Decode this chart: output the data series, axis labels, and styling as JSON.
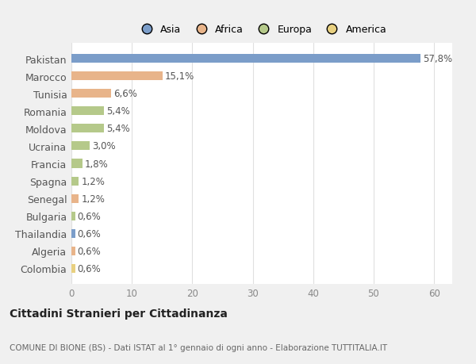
{
  "categories": [
    "Pakistan",
    "Marocco",
    "Tunisia",
    "Romania",
    "Moldova",
    "Ucraina",
    "Francia",
    "Spagna",
    "Senegal",
    "Bulgaria",
    "Thailandia",
    "Algeria",
    "Colombia"
  ],
  "values": [
    57.8,
    15.1,
    6.6,
    5.4,
    5.4,
    3.0,
    1.8,
    1.2,
    1.2,
    0.6,
    0.6,
    0.6,
    0.6
  ],
  "labels": [
    "57,8%",
    "15,1%",
    "6,6%",
    "5,4%",
    "5,4%",
    "3,0%",
    "1,8%",
    "1,2%",
    "1,2%",
    "0,6%",
    "0,6%",
    "0,6%",
    "0,6%"
  ],
  "colors": [
    "#7b9dc9",
    "#e8b48a",
    "#e8b48a",
    "#b5c98a",
    "#b5c98a",
    "#b5c98a",
    "#b5c98a",
    "#b5c98a",
    "#e8b48a",
    "#b5c98a",
    "#7b9dc9",
    "#e8b48a",
    "#e8d080"
  ],
  "legend_labels": [
    "Asia",
    "Africa",
    "Europa",
    "America"
  ],
  "legend_colors": [
    "#7b9dc9",
    "#e8b48a",
    "#b5c98a",
    "#e8d080"
  ],
  "title": "Cittadini Stranieri per Cittadinanza",
  "subtitle": "COMUNE DI BIONE (BS) - Dati ISTAT al 1° gennaio di ogni anno - Elaborazione TUTTITALIA.IT",
  "xlim": [
    0,
    63
  ],
  "xticks": [
    0,
    10,
    20,
    30,
    40,
    50,
    60
  ],
  "background_color": "#f0f0f0",
  "plot_bg_color": "#ffffff",
  "grid_color": "#e0e0e0",
  "bar_height": 0.5,
  "label_fontsize": 8.5,
  "ytick_fontsize": 9,
  "xtick_fontsize": 8.5,
  "label_color": "#555555",
  "ytick_color": "#555555",
  "xtick_color": "#888888"
}
